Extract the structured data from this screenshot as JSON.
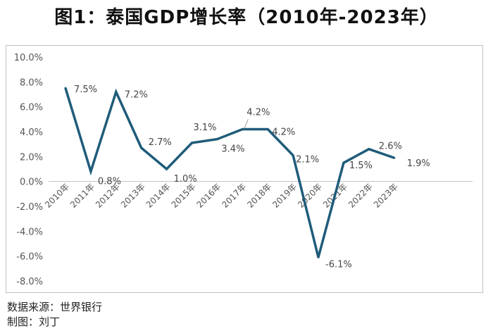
{
  "title": "图1：泰国GDP增长率（2010年-2023年）",
  "footer": {
    "source": "数据来源：世界银行",
    "author": "制图：刘丁"
  },
  "colors": {
    "line": "#1f5c7a",
    "axis_text": "#555555",
    "zero_line": "#bfbfbf",
    "label_text": "#444444"
  },
  "chart_data": {
    "type": "line",
    "title": "图1：泰国GDP增长率（2010年-2023年）",
    "xlabel": "",
    "ylabel": "",
    "ylim": [
      -8,
      10
    ],
    "yticks": [
      10,
      8,
      6,
      4,
      2,
      0,
      -2,
      -4,
      -6,
      -8
    ],
    "ytick_labels": [
      "10.0%",
      "8.0%",
      "6.0%",
      "4.0%",
      "2.0%",
      "0.0%",
      "-2.0%",
      "-4.0%",
      "-6.0%",
      "-8.0%"
    ],
    "grid": false,
    "categories": [
      "2010年",
      "2011年",
      "2012年",
      "2013年",
      "2014年",
      "2015年",
      "2016年",
      "2017年",
      "2018年",
      "2019年",
      "2020年",
      "2021年",
      "2022年",
      "2023年"
    ],
    "series": [
      {
        "name": "泰国GDP增长率",
        "values": [
          7.5,
          0.8,
          7.2,
          2.7,
          1.0,
          3.1,
          3.4,
          4.2,
          4.2,
          2.1,
          -6.1,
          1.5,
          2.6,
          1.9
        ],
        "labels": [
          "7.5%",
          "0.8%",
          "7.2%",
          "2.7%",
          "1.0%",
          "3.1%",
          "3.4%",
          "4.2%",
          "4.2%",
          "2.1%",
          "-6.1%",
          "1.5%",
          "2.6%",
          "1.9%"
        ]
      }
    ]
  }
}
